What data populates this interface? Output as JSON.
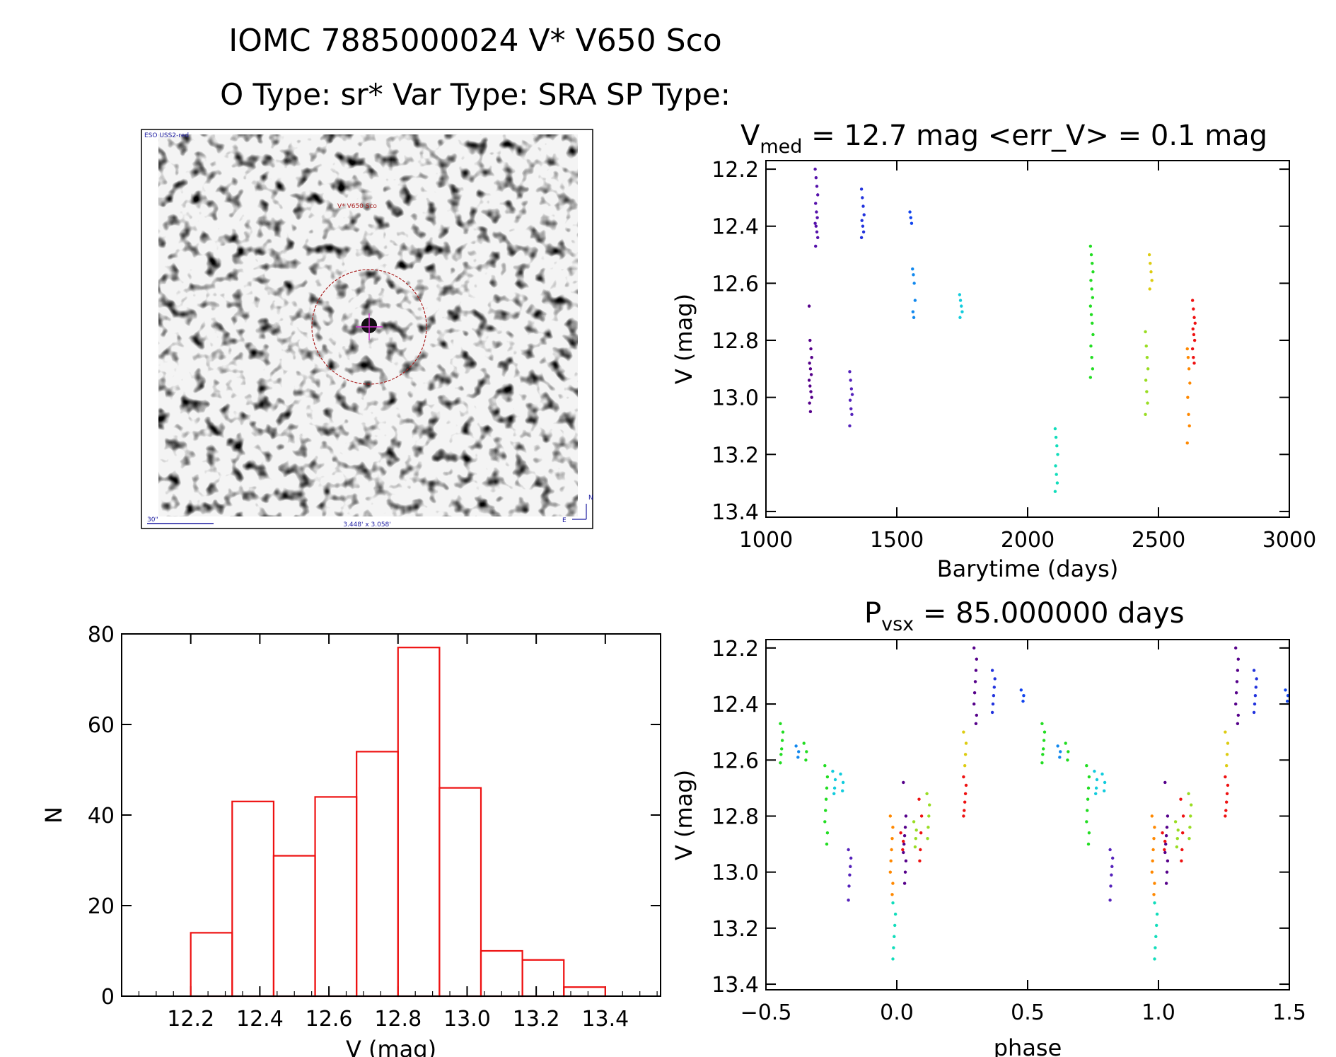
{
  "header": {
    "line1": "IOMC 7885000024   V* V650 Sco",
    "line2": "O Type: sr*  Var Type: SRA  SP Type:"
  },
  "finder": {
    "survey_label": "ESO USS2-red",
    "target_label": "V* V650 Sco",
    "scale_label": "30\"",
    "fov_label": "3.448' x 3.058'",
    "north_label": "N",
    "east_label": "E",
    "circle_color": "#aa2222",
    "cross_color": "#cc33cc"
  },
  "chart_data": [
    {
      "id": "lightcurve",
      "type": "scatter",
      "title_prefix": "V",
      "title_sub": "med",
      "title_rest": " = 12.7 mag <err_V> = 0.1 mag",
      "xlabel": "Barytime (days)",
      "ylabel": "V (mag)",
      "xlim": [
        1000,
        3000
      ],
      "ylim": [
        13.42,
        12.17
      ],
      "y_inverted": true,
      "xticks": [
        1000,
        1500,
        2000,
        2500,
        3000
      ],
      "xtick_labels": [
        "1000",
        "1500",
        "2000",
        "2500",
        "3000"
      ],
      "yticks": [
        12.2,
        12.4,
        12.6,
        12.8,
        13.0,
        13.2,
        13.4
      ],
      "ytick_labels": [
        "12.2",
        "12.4",
        "12.6",
        "12.8",
        "13.0",
        "13.2",
        "13.4"
      ],
      "series": [
        {
          "name": "s1",
          "color": "#55008a",
          "x": 1170,
          "y": [
            12.68,
            12.8,
            12.83,
            12.86,
            12.88,
            12.9,
            12.92,
            12.94,
            12.96,
            12.98,
            13.0,
            13.02,
            13.05
          ]
        },
        {
          "name": "s2",
          "color": "#5511aa",
          "x": 1193,
          "y": [
            12.2,
            12.23,
            12.26,
            12.29,
            12.32,
            12.35,
            12.37,
            12.39,
            12.4,
            12.42,
            12.44,
            12.47
          ]
        },
        {
          "name": "s3",
          "color": "#5522bb",
          "x": 1325,
          "y": [
            12.91,
            12.94,
            12.97,
            12.99,
            13.01,
            13.04,
            13.06,
            13.1
          ]
        },
        {
          "name": "s4",
          "color": "#2233dd",
          "x": 1370,
          "y": [
            12.27,
            12.3,
            12.33,
            12.36,
            12.38,
            12.4,
            12.42,
            12.44
          ]
        },
        {
          "name": "s5",
          "color": "#1144ee",
          "x": 1555,
          "y": [
            12.35,
            12.37,
            12.39
          ]
        },
        {
          "name": "s6",
          "color": "#1188ee",
          "x": 1565,
          "y": [
            12.55,
            12.57,
            12.6,
            12.66,
            12.7,
            12.72
          ]
        },
        {
          "name": "s7",
          "color": "#11ccdd",
          "x": 1745,
          "y": [
            12.64,
            12.66,
            12.68,
            12.7,
            12.72
          ]
        },
        {
          "name": "s8",
          "color": "#11ddbb",
          "x": 2110,
          "y": [
            13.11,
            13.14,
            13.17,
            13.2,
            13.24,
            13.27,
            13.3,
            13.33
          ]
        },
        {
          "name": "s9",
          "color": "#22dd22",
          "x": 2245,
          "y": [
            12.47,
            12.5,
            12.53,
            12.56,
            12.59,
            12.62,
            12.65,
            12.68,
            12.71,
            12.74,
            12.78,
            12.82,
            12.86,
            12.9,
            12.93
          ]
        },
        {
          "name": "s10",
          "color": "#99dd22",
          "x": 2455,
          "y": [
            12.77,
            12.82,
            12.86,
            12.9,
            12.94,
            12.98,
            13.02,
            13.06
          ]
        },
        {
          "name": "s11",
          "color": "#ddcc11",
          "x": 2470,
          "y": [
            12.5,
            12.53,
            12.56,
            12.59,
            12.62
          ]
        },
        {
          "name": "s12",
          "color": "#ff8800",
          "x": 2615,
          "y": [
            12.83,
            12.86,
            12.9,
            12.95,
            13.0,
            13.06,
            13.1,
            13.16
          ]
        },
        {
          "name": "s13",
          "color": "#ee1111",
          "x": 2635,
          "y": [
            12.66,
            12.69,
            12.72,
            12.74,
            12.76,
            12.78,
            12.8,
            12.83,
            12.86,
            12.88
          ]
        }
      ]
    },
    {
      "id": "histogram",
      "type": "bar",
      "xlabel": "V (mag)",
      "ylabel": "N",
      "xlim": [
        12.0,
        13.56
      ],
      "ylim": [
        0,
        80
      ],
      "bar_color": "#ee1111",
      "bin_edges": [
        12.2,
        12.32,
        12.44,
        12.56,
        12.68,
        12.8,
        12.92,
        13.04,
        13.16,
        13.28,
        13.4
      ],
      "values": [
        14,
        43,
        31,
        44,
        54,
        77,
        46,
        10,
        8,
        2
      ],
      "xticks": [
        12.2,
        12.4,
        12.6,
        12.8,
        13.0,
        13.2,
        13.4
      ],
      "xtick_labels": [
        "12.2",
        "12.4",
        "12.6",
        "12.8",
        "13.0",
        "13.2",
        "13.4"
      ],
      "yticks": [
        0,
        20,
        40,
        60,
        80
      ],
      "ytick_labels": [
        "0",
        "20",
        "40",
        "60",
        "80"
      ]
    },
    {
      "id": "phased",
      "type": "scatter",
      "title_prefix": "P",
      "title_sub": "vsx",
      "title_rest": " = 85.000000 days",
      "xlabel": "phase",
      "ylabel": "V (mag)",
      "xlim": [
        -0.5,
        1.5
      ],
      "ylim": [
        13.42,
        12.17
      ],
      "y_inverted": true,
      "xticks": [
        -0.5,
        0.0,
        0.5,
        1.0,
        1.5
      ],
      "xtick_labels": [
        "−0.5",
        "0.0",
        "0.5",
        "1.0",
        "1.5"
      ],
      "yticks": [
        12.2,
        12.4,
        12.6,
        12.8,
        13.0,
        13.2,
        13.4
      ],
      "ytick_labels": [
        "12.2",
        "12.4",
        "12.6",
        "12.8",
        "13.0",
        "13.2",
        "13.4"
      ],
      "groups": [
        {
          "color": "#22dd22",
          "x": -0.44,
          "y": [
            12.47,
            12.5,
            12.53,
            12.56,
            12.58,
            12.61
          ]
        },
        {
          "color": "#1188ee",
          "x": -0.38,
          "y": [
            12.55,
            12.57,
            12.59
          ]
        },
        {
          "color": "#22dd22",
          "x": -0.35,
          "y": [
            12.54,
            12.57,
            12.6
          ]
        },
        {
          "color": "#22dd22",
          "x": -0.27,
          "y": [
            12.62,
            12.66,
            12.7,
            12.74,
            12.78,
            12.82,
            12.86,
            12.9
          ]
        },
        {
          "color": "#11ccdd",
          "x": -0.24,
          "y": [
            12.64,
            12.67,
            12.7,
            12.72
          ]
        },
        {
          "color": "#11ccdd",
          "x": -0.21,
          "y": [
            12.65,
            12.68,
            12.71
          ]
        },
        {
          "color": "#5522bb",
          "x": -0.18,
          "y": [
            12.92,
            12.95,
            12.98,
            13.01,
            13.05,
            13.1
          ]
        },
        {
          "color": "#ff8800",
          "x": -0.02,
          "y": [
            12.8,
            12.84,
            12.88,
            12.92,
            12.96,
            13.0,
            13.04,
            13.08
          ]
        },
        {
          "color": "#11ddbb",
          "x": -0.01,
          "y": [
            13.11,
            13.15,
            13.19,
            13.23,
            13.27,
            13.31
          ]
        },
        {
          "color": "#55008a",
          "x": 0.03,
          "y": [
            12.68,
            12.8,
            12.84,
            12.87,
            12.9,
            12.93,
            12.96,
            13.0,
            13.04
          ]
        },
        {
          "color": "#ee1111",
          "x": 0.02,
          "y": [
            12.86,
            12.89,
            12.92
          ]
        },
        {
          "color": "#99dd22",
          "x": 0.07,
          "y": [
            12.82,
            12.85,
            12.88,
            12.91
          ]
        },
        {
          "color": "#ee1111",
          "x": 0.09,
          "y": [
            12.74,
            12.8,
            12.86,
            12.92,
            12.96
          ]
        },
        {
          "color": "#99dd22",
          "x": 0.12,
          "y": [
            12.72,
            12.76,
            12.8,
            12.84,
            12.88
          ]
        },
        {
          "color": "#ee1111",
          "x": 0.26,
          "y": [
            12.66,
            12.69,
            12.72,
            12.75,
            12.78,
            12.8
          ]
        },
        {
          "color": "#ddcc11",
          "x": 0.26,
          "y": [
            12.5,
            12.54,
            12.58,
            12.62
          ]
        },
        {
          "color": "#55008a",
          "x": 0.3,
          "y": [
            12.2,
            12.24,
            12.28,
            12.32,
            12.36,
            12.4,
            12.44,
            12.47
          ]
        },
        {
          "color": "#2233dd",
          "x": 0.37,
          "y": [
            12.28,
            12.31,
            12.34,
            12.37,
            12.4,
            12.43
          ]
        },
        {
          "color": "#1144ee",
          "x": 0.48,
          "y": [
            12.35,
            12.37,
            12.39
          ]
        },
        {
          "color": "#22dd22",
          "x": 0.56,
          "y": [
            12.47,
            12.5,
            12.53,
            12.56,
            12.58,
            12.61
          ]
        },
        {
          "color": "#1188ee",
          "x": 0.62,
          "y": [
            12.55,
            12.57,
            12.59
          ]
        },
        {
          "color": "#22dd22",
          "x": 0.65,
          "y": [
            12.54,
            12.57,
            12.6
          ]
        },
        {
          "color": "#22dd22",
          "x": 0.73,
          "y": [
            12.62,
            12.66,
            12.7,
            12.74,
            12.78,
            12.82,
            12.86,
            12.9
          ]
        },
        {
          "color": "#11ccdd",
          "x": 0.76,
          "y": [
            12.64,
            12.67,
            12.7,
            12.72
          ]
        },
        {
          "color": "#11ccdd",
          "x": 0.79,
          "y": [
            12.65,
            12.68,
            12.71
          ]
        },
        {
          "color": "#5522bb",
          "x": 0.82,
          "y": [
            12.92,
            12.95,
            12.98,
            13.01,
            13.05,
            13.1
          ]
        },
        {
          "color": "#ff8800",
          "x": 0.98,
          "y": [
            12.8,
            12.84,
            12.88,
            12.92,
            12.96,
            13.0,
            13.04,
            13.08
          ]
        },
        {
          "color": "#11ddbb",
          "x": 0.99,
          "y": [
            13.11,
            13.15,
            13.19,
            13.23,
            13.27,
            13.31
          ]
        },
        {
          "color": "#55008a",
          "x": 1.03,
          "y": [
            12.68,
            12.8,
            12.84,
            12.87,
            12.9,
            12.93,
            12.96,
            13.0,
            13.04
          ]
        },
        {
          "color": "#ee1111",
          "x": 1.02,
          "y": [
            12.86,
            12.89,
            12.92
          ]
        },
        {
          "color": "#99dd22",
          "x": 1.07,
          "y": [
            12.82,
            12.85,
            12.88,
            12.91
          ]
        },
        {
          "color": "#ee1111",
          "x": 1.09,
          "y": [
            12.74,
            12.8,
            12.86,
            12.92,
            12.96
          ]
        },
        {
          "color": "#99dd22",
          "x": 1.12,
          "y": [
            12.72,
            12.76,
            12.8,
            12.84,
            12.88
          ]
        },
        {
          "color": "#ee1111",
          "x": 1.26,
          "y": [
            12.66,
            12.69,
            12.72,
            12.75,
            12.78,
            12.8
          ]
        },
        {
          "color": "#ddcc11",
          "x": 1.26,
          "y": [
            12.5,
            12.54,
            12.58,
            12.62
          ]
        },
        {
          "color": "#55008a",
          "x": 1.3,
          "y": [
            12.2,
            12.24,
            12.28,
            12.32,
            12.36,
            12.4,
            12.44,
            12.47
          ]
        },
        {
          "color": "#2233dd",
          "x": 1.37,
          "y": [
            12.28,
            12.31,
            12.34,
            12.37,
            12.4,
            12.43
          ]
        },
        {
          "color": "#1144ee",
          "x": 1.49,
          "y": [
            12.35,
            12.37,
            12.39
          ]
        }
      ]
    }
  ]
}
